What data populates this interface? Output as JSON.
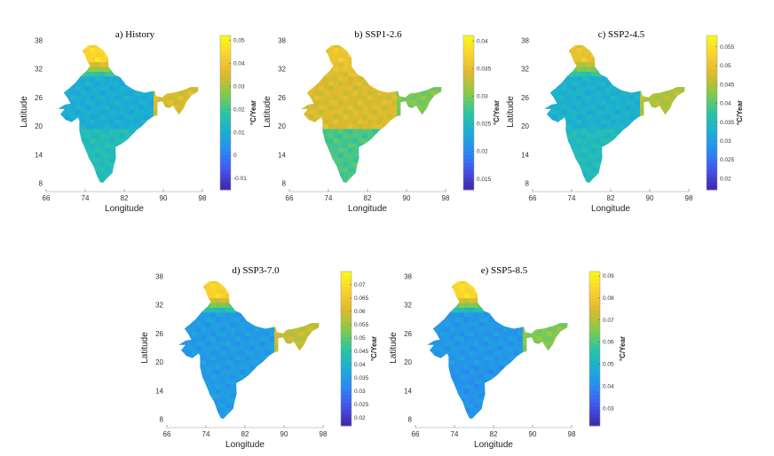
{
  "axes": {
    "xlabel": "Longitude",
    "ylabel": "Latitude",
    "xticks": [
      "66",
      "74",
      "82",
      "90",
      "98"
    ],
    "yticks": [
      "38",
      "32",
      "26",
      "20",
      "14",
      "8"
    ],
    "colorbar_label": "°C/Year"
  },
  "chart_data": [
    {
      "type": "heatmap",
      "title": "a) History",
      "xlabel": "Longitude",
      "ylabel": "Latitude",
      "xlim": [
        66,
        98
      ],
      "ylim": [
        7,
        39
      ],
      "colorbar_ticks": [
        "0.05",
        "0.04",
        "0.03",
        "0.02",
        "0.01",
        "0",
        "-0.01"
      ],
      "colorbar_range": [
        -0.015,
        0.052
      ],
      "regions": [
        {
          "name": "north",
          "value": 0.045
        },
        {
          "name": "northeast",
          "value": 0.035
        },
        {
          "name": "central",
          "value": 0.01
        },
        {
          "name": "south",
          "value": 0.015
        }
      ]
    },
    {
      "type": "heatmap",
      "title": "b) SSP1-2.6",
      "xlabel": "Longitude",
      "ylabel": "Latitude",
      "xlim": [
        66,
        98
      ],
      "ylim": [
        7,
        39
      ],
      "colorbar_ticks": [
        "0.04",
        "0.035",
        "0.03",
        "0.025",
        "0.02",
        "0.015"
      ],
      "colorbar_range": [
        0.013,
        0.041
      ],
      "regions": [
        {
          "name": "north",
          "value": 0.036
        },
        {
          "name": "northeast",
          "value": 0.03
        },
        {
          "name": "central",
          "value": 0.034
        },
        {
          "name": "south",
          "value": 0.028
        }
      ]
    },
    {
      "type": "heatmap",
      "title": "c) SSP2-4.5",
      "xlabel": "Longitude",
      "ylabel": "Latitude",
      "xlim": [
        66,
        98
      ],
      "ylim": [
        7,
        39
      ],
      "colorbar_ticks": [
        "0.055",
        "0.05",
        "0.045",
        "0.04",
        "0.035",
        "0.03",
        "0.025",
        "0.02"
      ],
      "colorbar_range": [
        0.017,
        0.058
      ],
      "regions": [
        {
          "name": "north",
          "value": 0.05
        },
        {
          "name": "northeast",
          "value": 0.045
        },
        {
          "name": "central",
          "value": 0.033
        },
        {
          "name": "south",
          "value": 0.035
        }
      ]
    },
    {
      "type": "heatmap",
      "title": "d) SSP3-7.0",
      "xlabel": "Longitude",
      "ylabel": "Latitude",
      "xlim": [
        66,
        98
      ],
      "ylim": [
        7,
        39
      ],
      "colorbar_ticks": [
        "0.07",
        "0.065",
        "0.06",
        "0.055",
        "0.05",
        "0.045",
        "0.04",
        "0.035",
        "0.03",
        "0.025",
        "0.02"
      ],
      "colorbar_range": [
        0.017,
        0.075
      ],
      "regions": [
        {
          "name": "north",
          "value": 0.068
        },
        {
          "name": "northeast",
          "value": 0.058
        },
        {
          "name": "central",
          "value": 0.035
        },
        {
          "name": "south",
          "value": 0.035
        }
      ]
    },
    {
      "type": "heatmap",
      "title": "e) SSP5-8.5",
      "xlabel": "Longitude",
      "ylabel": "Latitude",
      "xlim": [
        66,
        98
      ],
      "ylim": [
        7,
        39
      ],
      "colorbar_ticks": [
        "0.09",
        "0.08",
        "0.07",
        "0.06",
        "0.05",
        "0.04",
        "0.03"
      ],
      "colorbar_range": [
        0.022,
        0.092
      ],
      "regions": [
        {
          "name": "north",
          "value": 0.085
        },
        {
          "name": "northeast",
          "value": 0.065
        },
        {
          "name": "central",
          "value": 0.043
        },
        {
          "name": "south",
          "value": 0.042
        }
      ]
    }
  ],
  "colors": {
    "colormap": [
      "#3e26a8",
      "#4354eb",
      "#2a89f3",
      "#1bafd3",
      "#2cc4a2",
      "#88c948",
      "#ddb92e",
      "#fad131",
      "#f9fb15"
    ]
  }
}
